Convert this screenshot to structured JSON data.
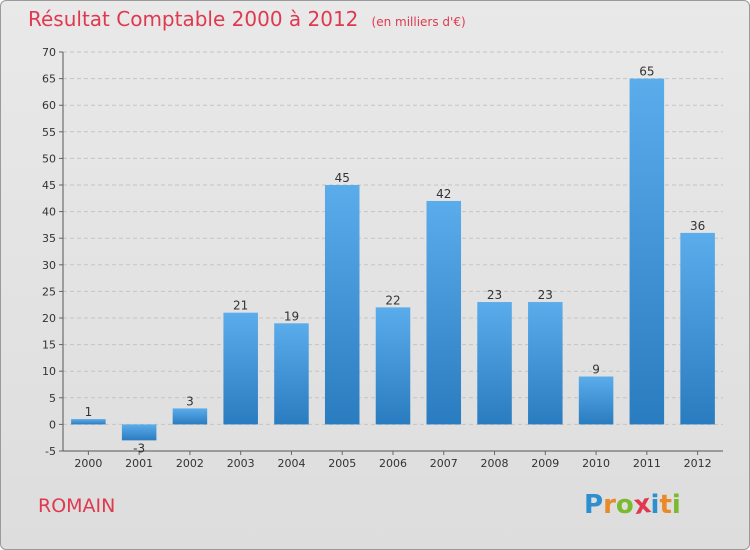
{
  "header": {
    "title": "Résultat Comptable 2000 à 2012",
    "unit": "(en milliers d'€)"
  },
  "footer": {
    "commune": "ROMAIN",
    "logo_letters": [
      "P",
      "r",
      "o",
      "x",
      "i",
      "t",
      "i"
    ],
    "logo_colors": [
      "#2e8fcf",
      "#e9892a",
      "#7bb92f",
      "#e0394f",
      "#2e8fcf",
      "#e9892a",
      "#7bb92f"
    ]
  },
  "colors": {
    "title": "#e0394f",
    "bar_light": "#5aaceb",
    "bar_dark": "#2a7cc0",
    "grid": "#c4c4c4",
    "background": "#e4e4e4"
  },
  "chart_data": {
    "type": "bar",
    "title": "Résultat Comptable 2000 à 2012",
    "subtitle": "(en milliers d'€)",
    "xlabel": "",
    "ylabel": "",
    "categories": [
      "2000",
      "2001",
      "2002",
      "2003",
      "2004",
      "2005",
      "2006",
      "2007",
      "2008",
      "2009",
      "2010",
      "2011",
      "2012"
    ],
    "values": [
      1,
      -3,
      3,
      21,
      19,
      45,
      22,
      42,
      23,
      23,
      9,
      65,
      36
    ],
    "ylim": [
      -5,
      70
    ],
    "yticks": [
      -5,
      0,
      5,
      10,
      15,
      20,
      25,
      30,
      35,
      40,
      45,
      50,
      55,
      60,
      65,
      70
    ],
    "grid": true,
    "legend": "none"
  }
}
